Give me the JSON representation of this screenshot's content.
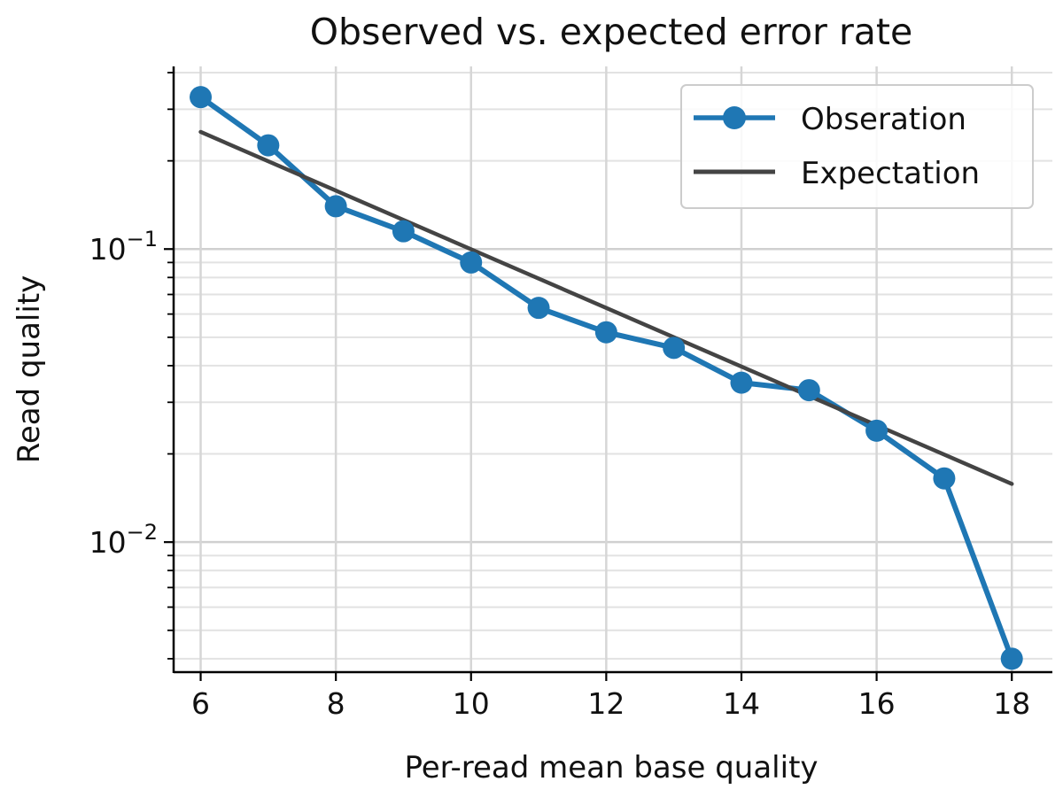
{
  "chart_data": {
    "type": "line",
    "title": "Observed vs. expected error rate",
    "xlabel": "Per-read mean base quality",
    "ylabel": "Read quality",
    "xlim": [
      5.6,
      18.6
    ],
    "ylim": [
      0.0036,
      0.42
    ],
    "yscale": "log",
    "grid": true,
    "legend_position": "top-right",
    "x_ticks": [
      6,
      8,
      10,
      12,
      14,
      16,
      18
    ],
    "y_ticks": [
      {
        "value": 0.1,
        "base": "10",
        "exponent": "−1"
      },
      {
        "value": 0.01,
        "base": "10",
        "exponent": "−2"
      }
    ],
    "series": [
      {
        "name": "Obseration",
        "style": "line+markers",
        "color": "#1f77b4",
        "x": [
          6,
          7,
          8,
          9,
          10,
          11,
          12,
          13,
          14,
          15,
          16,
          17,
          18
        ],
        "y": [
          0.33,
          0.226,
          0.14,
          0.115,
          0.09,
          0.063,
          0.052,
          0.046,
          0.035,
          0.033,
          0.024,
          0.0165,
          0.004
        ]
      },
      {
        "name": "Expectation",
        "style": "line",
        "color": "#444444",
        "x": [
          6,
          18
        ],
        "y": [
          0.251,
          0.0158
        ]
      }
    ]
  }
}
